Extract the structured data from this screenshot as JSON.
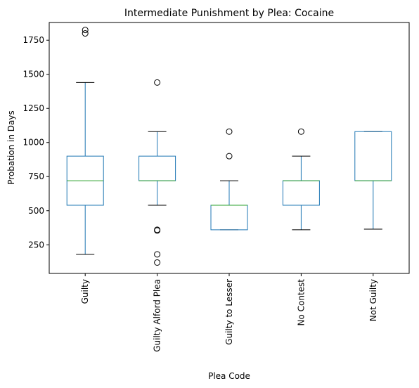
{
  "chart_data": {
    "type": "boxplot",
    "title": "Intermediate Punishment by Plea: Cocaine",
    "xlabel": "Plea Code",
    "ylabel": "Probation in Days",
    "ylim": [
      40,
      1880
    ],
    "yticks": [
      250,
      500,
      750,
      1000,
      1250,
      1500,
      1750
    ],
    "grid": false,
    "colors": {
      "box": "#1f77b4",
      "median": "#2ca02c",
      "whisker": "#1f77b4",
      "cap": "#000000",
      "flier": "#000000"
    },
    "categories": [
      "Guilty",
      "Guilty Alford Plea",
      "Guilty to Lesser",
      "No Contest",
      "Not Guilty"
    ],
    "boxes": [
      {
        "label": "Guilty",
        "whislo": 180,
        "q1": 540,
        "med": 720,
        "q3": 900,
        "whishi": 1440,
        "fliers": [
          1800,
          1825
        ]
      },
      {
        "label": "Guilty Alford Plea",
        "whislo": 540,
        "q1": 720,
        "med": 720,
        "q3": 900,
        "whishi": 1080,
        "fliers": [
          1440,
          360,
          355,
          180,
          120
        ]
      },
      {
        "label": "Guilty to Lesser",
        "whislo": 360,
        "q1": 360,
        "med": 540,
        "q3": 540,
        "whishi": 720,
        "fliers": [
          1080,
          900
        ]
      },
      {
        "label": "No Contest",
        "whislo": 360,
        "q1": 540,
        "med": 720,
        "q3": 720,
        "whishi": 900,
        "fliers": [
          1080
        ]
      },
      {
        "label": "Not Guilty",
        "whislo": 365,
        "q1": 720,
        "med": 720,
        "q3": 1080,
        "whishi": 1080,
        "fliers": []
      }
    ]
  }
}
